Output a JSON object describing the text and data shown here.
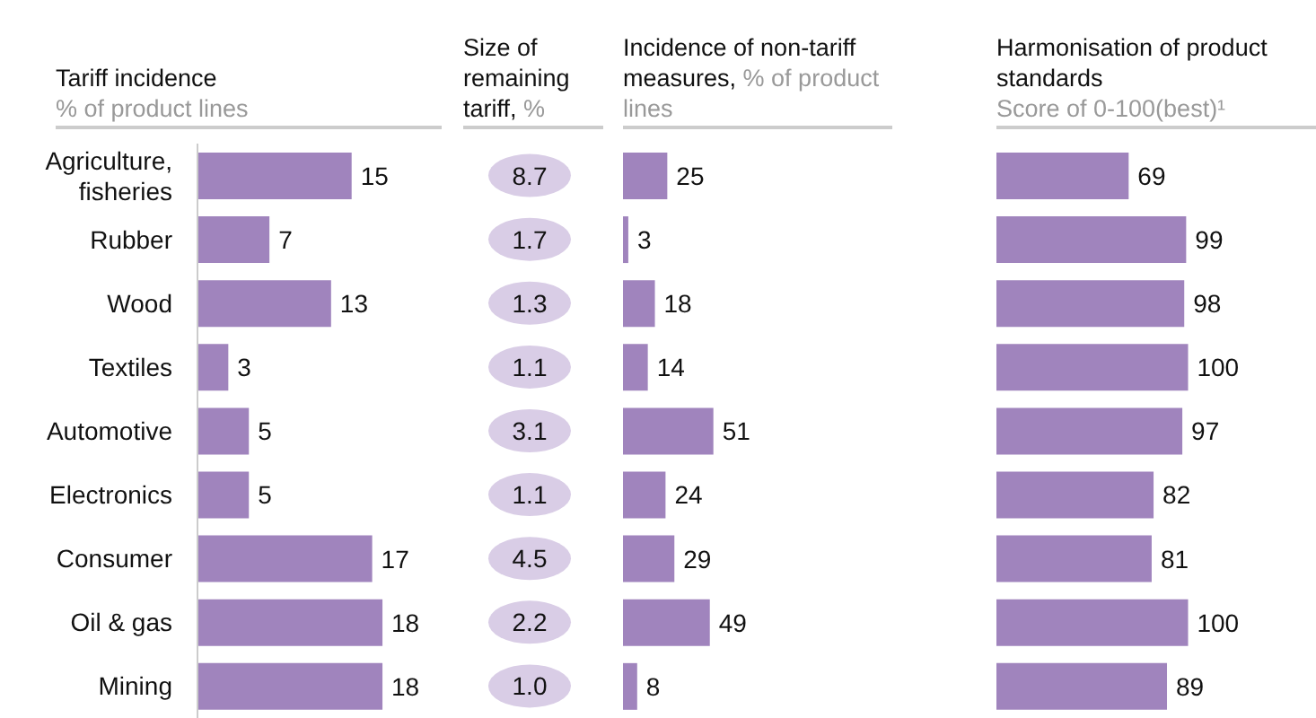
{
  "chart_data": [
    {
      "type": "bar",
      "orientation": "horizontal",
      "title": "Tariff incidence",
      "subtitle": "% of product lines",
      "categories": [
        "Agriculture, fisheries",
        "Rubber",
        "Wood",
        "Textiles",
        "Automotive",
        "Electronics",
        "Consumer",
        "Oil & gas",
        "Mining"
      ],
      "values": [
        15,
        7,
        13,
        3,
        5,
        5,
        17,
        18,
        18
      ],
      "color": "#a084bd",
      "data_labels": true,
      "tick_labels": "y",
      "grid": false,
      "legend": false
    },
    {
      "type": "other",
      "title": "Size of remaining tariff,",
      "subtitle": "%",
      "values": [
        8.7,
        1.7,
        1.3,
        1.1,
        3.1,
        1.1,
        4.5,
        2.2,
        1.0
      ],
      "value_labels": [
        "8.7",
        "1.7",
        "1.3",
        "1.1",
        "3.1",
        "1.1",
        "4.5",
        "2.2",
        "1.0"
      ],
      "color": "#d9cde6"
    },
    {
      "type": "bar",
      "orientation": "horizontal",
      "title": "Incidence of non-tariff measures,",
      "subtitle": "% of product lines",
      "categories": [
        null,
        null,
        null,
        null,
        null,
        null,
        null,
        null,
        null
      ],
      "values": [
        25,
        3,
        18,
        14,
        51,
        24,
        29,
        49,
        8
      ],
      "color": "#a084bd",
      "data_labels": true,
      "tick_labels": false,
      "grid": false,
      "legend": false
    },
    {
      "type": "bar",
      "orientation": "horizontal",
      "title": "Harmonisation of product standards",
      "subtitle": "Score of 0-100(best)¹",
      "categories": [
        null,
        null,
        null,
        null,
        null,
        null,
        null,
        null,
        null
      ],
      "values": [
        69,
        99,
        98,
        100,
        97,
        82,
        81,
        100,
        89
      ],
      "color": "#a084bd",
      "data_labels": true,
      "tick_labels": false,
      "grid": false,
      "legend": false
    }
  ]
}
